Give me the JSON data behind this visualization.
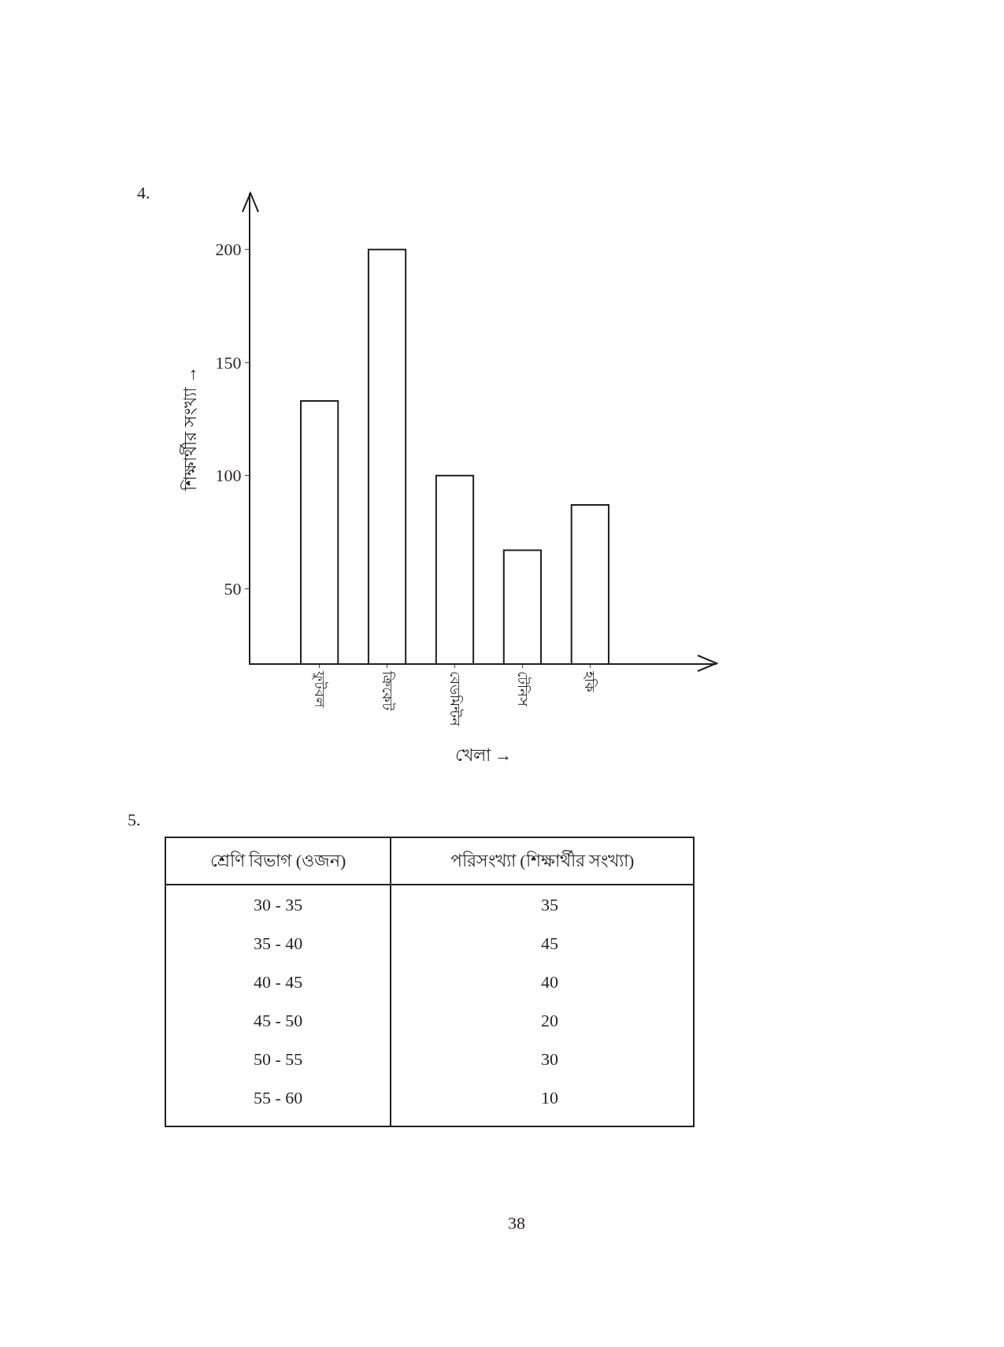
{
  "chart_data": [
    {
      "type": "bar",
      "categories": [
        "ফুটবল",
        "ক্রিকেট",
        "বেডমিন্টন",
        "টেনিস",
        "হকি"
      ],
      "values": [
        133,
        200,
        100,
        67,
        87
      ],
      "color": "#ffffff",
      "xlabel": "খেলা →",
      "ylabel": "শিক্ষার্থীর সংখ্যা →",
      "ylim": [
        17,
        225
      ],
      "yticks": [
        50,
        100,
        150,
        200
      ],
      "grid": false,
      "legend": false,
      "annotations": [
        "4."
      ]
    },
    {
      "type": "other",
      "categories": [
        "30 - 35",
        "35 - 40",
        "40 - 45",
        "45 - 50",
        "50 - 55",
        "55 - 60"
      ],
      "value_labels": [
        "35",
        "45",
        "40",
        "20",
        "30",
        "10"
      ],
      "xlabel": "শ্রেণি বিভাগ (ওজন)",
      "ylabel": "পরিসংখ্যা (শিক্ষার্থীর সংখ্যা)",
      "annotations": [
        "5.",
        "38"
      ]
    }
  ]
}
